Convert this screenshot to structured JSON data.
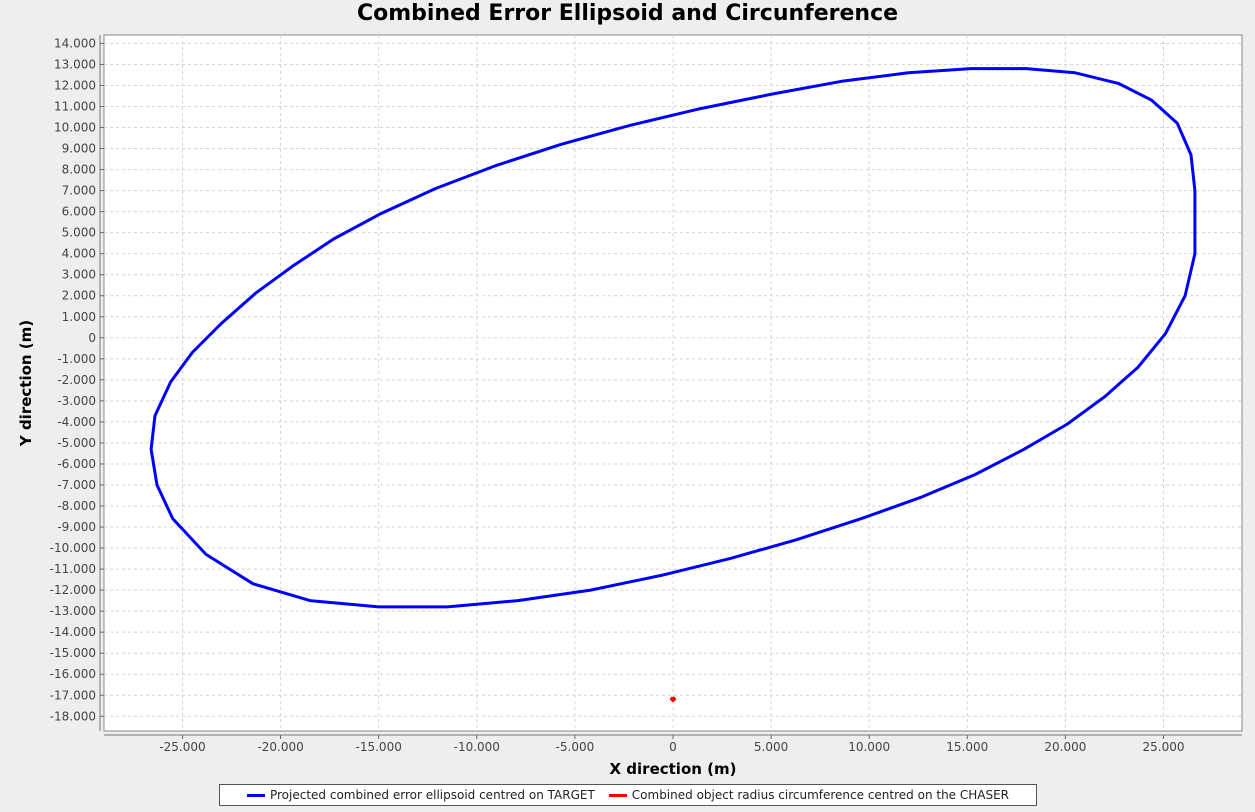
{
  "chart_data": {
    "type": "line",
    "title": "Combined Error Ellipsoid and Circunference",
    "xlabel": "X direction (m)",
    "ylabel": "Y direction (m)",
    "xlim": [
      -29000,
      29000
    ],
    "ylim": [
      -18700,
      14400
    ],
    "x_ticks": [
      -25000,
      -20000,
      -15000,
      -10000,
      -5000,
      0,
      5000,
      10000,
      15000,
      20000,
      25000
    ],
    "x_tick_labels": [
      "-25.000",
      "-20.000",
      "-15.000",
      "-10.000",
      "-5.000",
      "0",
      "5.000",
      "10.000",
      "15.000",
      "20.000",
      "25.000"
    ],
    "y_ticks": [
      14000,
      13000,
      12000,
      11000,
      10000,
      9000,
      8000,
      7000,
      6000,
      5000,
      4000,
      3000,
      2000,
      1000,
      0,
      -1000,
      -2000,
      -3000,
      -4000,
      -5000,
      -6000,
      -7000,
      -8000,
      -9000,
      -10000,
      -11000,
      -12000,
      -13000,
      -14000,
      -15000,
      -16000,
      -17000,
      -18000
    ],
    "y_tick_labels": [
      "14.000",
      "13.000",
      "12.000",
      "11.000",
      "10.000",
      "9.000",
      "8.000",
      "7.000",
      "6.000",
      "5.000",
      "4.000",
      "3.000",
      "2.000",
      "1.000",
      "0",
      "-1.000",
      "-2.000",
      "-3.000",
      "-4.000",
      "-5.000",
      "-6.000",
      "-7.000",
      "-8.000",
      "-9.000",
      "-10.000",
      "-11.000",
      "-12.000",
      "-13.000",
      "-14.000",
      "-15.000",
      "-16.000",
      "-17.000",
      "-18.000"
    ],
    "grid": true,
    "legend_position": "bottom",
    "series": [
      {
        "name": "Projected combined error ellipsoid centred on TARGET",
        "color": "#0000ff",
        "x": [
          26600,
          26400,
          25700,
          24400,
          22700,
          20500,
          18000,
          15200,
          12000,
          8600,
          5100,
          1400,
          -2200,
          -5700,
          -9000,
          -12100,
          -14900,
          -17300,
          -19400,
          -21300,
          -23000,
          -24500,
          -25600,
          -26400,
          -26600,
          -26300,
          -25500,
          -23800,
          -21400,
          -18500,
          -15000,
          -11500,
          -7900,
          -4200,
          -600,
          2900,
          6300,
          9600,
          12600,
          15400,
          17900,
          20100,
          22000,
          23700,
          25100,
          26100,
          26600,
          26600
        ],
        "y": [
          7000,
          8700,
          10200,
          11300,
          12100,
          12600,
          12800,
          12800,
          12600,
          12200,
          11600,
          10900,
          10100,
          9200,
          8200,
          7100,
          5900,
          4700,
          3400,
          2100,
          700,
          -700,
          -2100,
          -3700,
          -5300,
          -7000,
          -8600,
          -10300,
          -11700,
          -12500,
          -12800,
          -12800,
          -12500,
          -12000,
          -11300,
          -10500,
          -9600,
          -8600,
          -7600,
          -6500,
          -5300,
          -4100,
          -2800,
          -1400,
          200,
          2000,
          4000,
          7000
        ]
      },
      {
        "name": "Combined object radius circumference centred on the CHASER",
        "color": "#ff0000",
        "x": [
          0,
          80,
          0,
          -80,
          0
        ],
        "y": [
          -17100,
          -17180,
          -17260,
          -17180,
          -17100
        ]
      }
    ]
  }
}
